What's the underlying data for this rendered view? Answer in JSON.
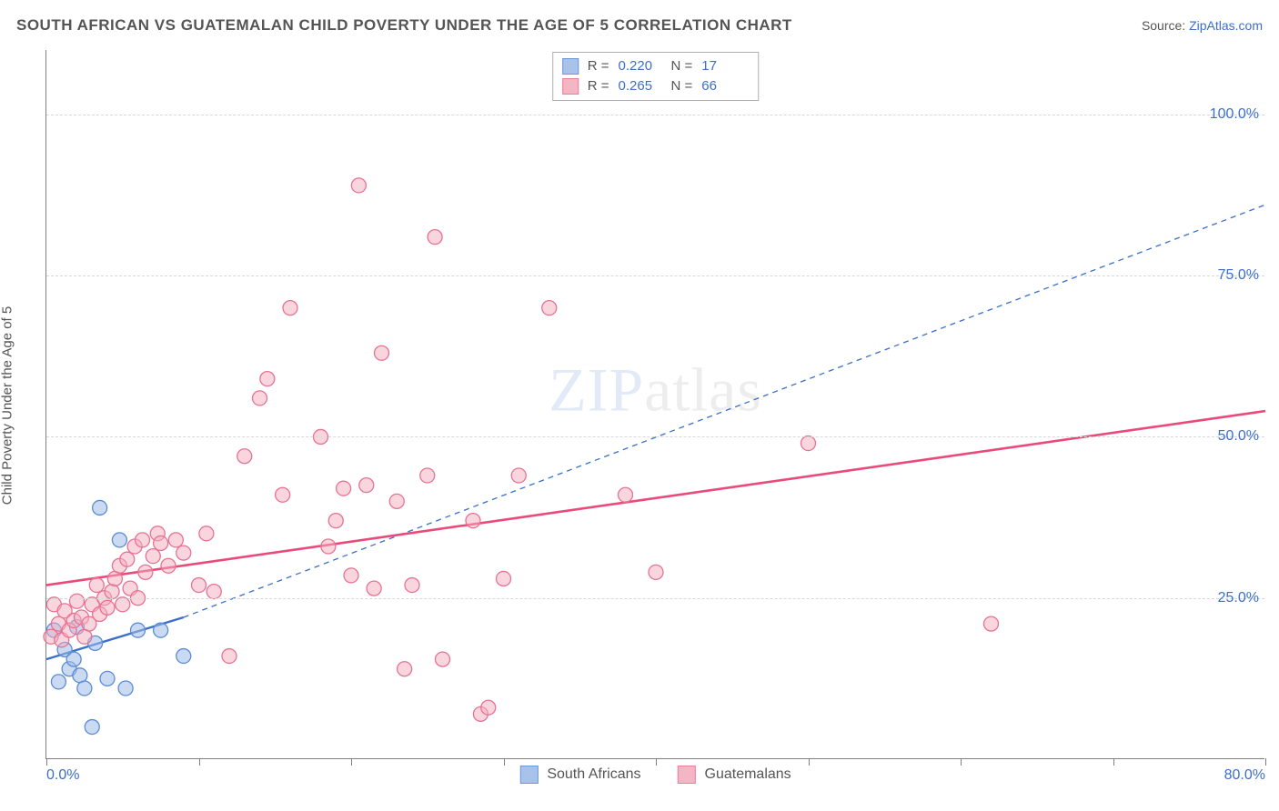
{
  "title": "SOUTH AFRICAN VS GUATEMALAN CHILD POVERTY UNDER THE AGE OF 5 CORRELATION CHART",
  "source_prefix": "Source: ",
  "source_link": "ZipAtlas.com",
  "ylabel": "Child Poverty Under the Age of 5",
  "watermark_bold": "ZIP",
  "watermark_thin": "atlas",
  "chart": {
    "type": "scatter",
    "background_color": "#ffffff",
    "grid_color": "#d8d8d8",
    "axis_color": "#808080",
    "text_color": "#555555",
    "accent_color": "#3b6fca",
    "xlim": [
      0,
      80
    ],
    "ylim": [
      0,
      110
    ],
    "x_ticks_major": [
      0,
      20,
      40,
      60,
      80
    ],
    "x_ticks_minor": [
      10,
      30,
      50,
      70
    ],
    "x_tick_labels": {
      "0": "0.0%",
      "80": "80.0%"
    },
    "y_gridlines": [
      25,
      50,
      75,
      100
    ],
    "y_tick_labels": {
      "25": "25.0%",
      "50": "50.0%",
      "75": "75.0%",
      "100": "100.0%"
    },
    "marker_radius": 8,
    "marker_stroke_width": 1.3,
    "series": [
      {
        "key": "south_africans",
        "label": "South Africans",
        "fill": "#9fbce8",
        "fill_opacity": 0.55,
        "stroke": "#5a8cd6",
        "trend": {
          "x1": 0,
          "y1": 15.5,
          "x2": 9,
          "y2": 22,
          "stroke": "#3b6fca",
          "width": 2.4,
          "dash": "none",
          "ext_x2": 80,
          "ext_y2": 86,
          "ext_dash": "6 5",
          "ext_width": 1.3
        },
        "stats": {
          "R": "0.220",
          "N": "17"
        },
        "points": [
          [
            0.5,
            20
          ],
          [
            0.8,
            12
          ],
          [
            1.2,
            17
          ],
          [
            1.5,
            14
          ],
          [
            1.8,
            15.5
          ],
          [
            2.0,
            20.5
          ],
          [
            2.2,
            13
          ],
          [
            2.5,
            11
          ],
          [
            3.0,
            5
          ],
          [
            3.2,
            18
          ],
          [
            3.5,
            39
          ],
          [
            4.0,
            12.5
          ],
          [
            4.8,
            34
          ],
          [
            5.2,
            11
          ],
          [
            6.0,
            20
          ],
          [
            7.5,
            20
          ],
          [
            9.0,
            16
          ]
        ]
      },
      {
        "key": "guatemalans",
        "label": "Guatemalans",
        "fill": "#f3aebe",
        "fill_opacity": 0.5,
        "stroke": "#e87293",
        "trend": {
          "x1": 0,
          "y1": 27,
          "x2": 80,
          "y2": 54,
          "stroke": "#e94a79",
          "width": 2.6,
          "dash": "none"
        },
        "stats": {
          "R": "0.265",
          "N": "66"
        },
        "points": [
          [
            0.3,
            19
          ],
          [
            0.5,
            24
          ],
          [
            0.8,
            21
          ],
          [
            1.0,
            18.5
          ],
          [
            1.2,
            23
          ],
          [
            1.5,
            20
          ],
          [
            1.8,
            21.5
          ],
          [
            2.0,
            24.5
          ],
          [
            2.3,
            22
          ],
          [
            2.5,
            19
          ],
          [
            2.8,
            21
          ],
          [
            3.0,
            24
          ],
          [
            3.3,
            27
          ],
          [
            3.5,
            22.5
          ],
          [
            3.8,
            25
          ],
          [
            4.0,
            23.5
          ],
          [
            4.3,
            26
          ],
          [
            4.5,
            28
          ],
          [
            4.8,
            30
          ],
          [
            5.0,
            24
          ],
          [
            5.3,
            31
          ],
          [
            5.5,
            26.5
          ],
          [
            5.8,
            33
          ],
          [
            6.0,
            25
          ],
          [
            6.3,
            34
          ],
          [
            6.5,
            29
          ],
          [
            7.0,
            31.5
          ],
          [
            7.3,
            35
          ],
          [
            7.5,
            33.5
          ],
          [
            8.0,
            30
          ],
          [
            8.5,
            34
          ],
          [
            9.0,
            32
          ],
          [
            10.0,
            27
          ],
          [
            10.5,
            35
          ],
          [
            11.0,
            26
          ],
          [
            12.0,
            16
          ],
          [
            13.0,
            47
          ],
          [
            14.0,
            56
          ],
          [
            14.5,
            59
          ],
          [
            15.5,
            41
          ],
          [
            16.0,
            70
          ],
          [
            18.0,
            50
          ],
          [
            18.5,
            33
          ],
          [
            19.0,
            37
          ],
          [
            19.5,
            42
          ],
          [
            20.0,
            28.5
          ],
          [
            20.5,
            89
          ],
          [
            21.0,
            42.5
          ],
          [
            21.5,
            26.5
          ],
          [
            22.0,
            63
          ],
          [
            23.0,
            40
          ],
          [
            23.5,
            14
          ],
          [
            24.0,
            27
          ],
          [
            25.0,
            44
          ],
          [
            25.5,
            81
          ],
          [
            26.0,
            15.5
          ],
          [
            28.0,
            37
          ],
          [
            28.5,
            7
          ],
          [
            29.0,
            8
          ],
          [
            30.0,
            28
          ],
          [
            31.0,
            44
          ],
          [
            33.0,
            70
          ],
          [
            38.0,
            41
          ],
          [
            40.0,
            29
          ],
          [
            50.0,
            49
          ],
          [
            62.0,
            21
          ]
        ]
      }
    ]
  },
  "stat_legend": {
    "R_label": "R =",
    "N_label": "N ="
  }
}
